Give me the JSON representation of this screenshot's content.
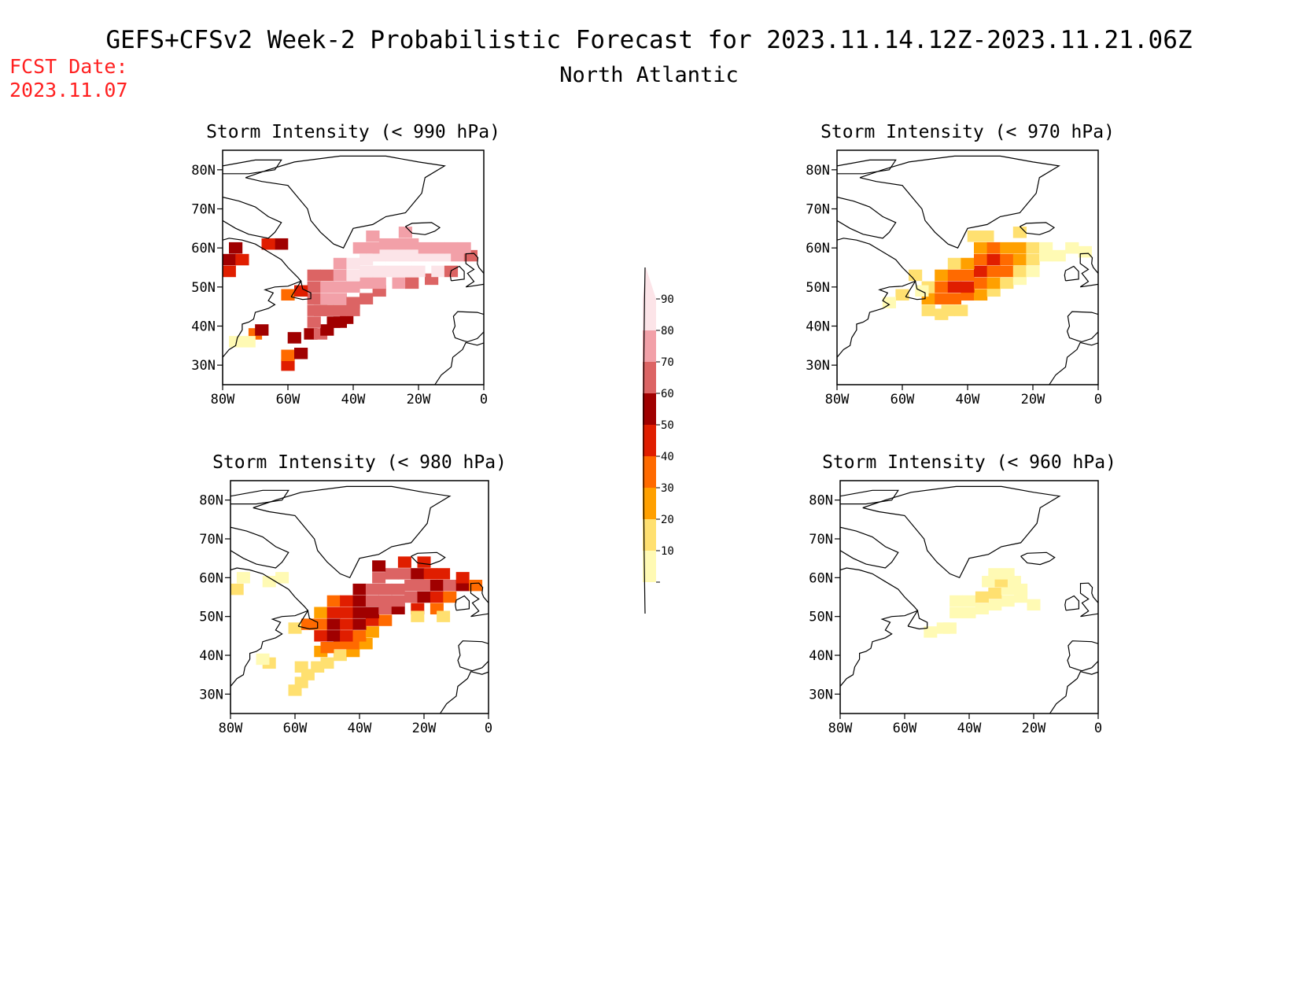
{
  "header": {
    "title": "GEFS+CFSv2 Week-2 Probabilistic Forecast for 2023.11.14.12Z-2023.11.21.06Z",
    "subtitle": "North Atlantic",
    "fcst_label": "FCST Date:",
    "fcst_date": "2023.11.07",
    "fcst_color": "#ff2020"
  },
  "axes": {
    "lat_labels": [
      "80N",
      "70N",
      "60N",
      "50N",
      "40N",
      "30N"
    ],
    "lon_labels": [
      "80W",
      "60W",
      "40W",
      "20W",
      "0"
    ]
  },
  "panels": [
    {
      "title": "Storm Intensity (< 990 hPa)"
    },
    {
      "title": "Storm Intensity (< 970 hPa)"
    },
    {
      "title": "Storm Intensity (< 980 hPa)"
    },
    {
      "title": "Storm Intensity (< 960 hPa)"
    }
  ],
  "colorbar": {
    "labels": [
      "90",
      "80",
      "70",
      "60",
      "50",
      "40",
      "30",
      "20",
      "10"
    ],
    "colors": [
      "#fce4e8",
      "#f2a0a8",
      "#dc6464",
      "#a00000",
      "#e01e00",
      "#ff6a00",
      "#ffa000",
      "#ffe070",
      "#fffab4"
    ]
  },
  "chart_data": [
    {
      "type": "heatmap",
      "title": "Storm Intensity (< 990 hPa)",
      "xlim": [
        -80,
        0
      ],
      "ylim": [
        25,
        85
      ],
      "cells": [
        [
          -60,
          30,
          50
        ],
        [
          -60,
          32.5,
          40
        ],
        [
          -56,
          33,
          60
        ],
        [
          -58,
          37,
          60
        ],
        [
          -53,
          38,
          60
        ],
        [
          -50,
          38,
          70
        ],
        [
          -48,
          39,
          60
        ],
        [
          -46,
          41,
          60
        ],
        [
          -44,
          41,
          60
        ],
        [
          -42,
          42,
          60
        ],
        [
          -52,
          41,
          70
        ],
        [
          -52,
          44,
          70
        ],
        [
          -50,
          44,
          70
        ],
        [
          -48,
          44,
          70
        ],
        [
          -44,
          44,
          70
        ],
        [
          -40,
          44,
          70
        ],
        [
          -52,
          47,
          70
        ],
        [
          -50,
          47,
          70
        ],
        [
          -48,
          47,
          80
        ],
        [
          -44,
          47,
          80
        ],
        [
          -40,
          46,
          70
        ],
        [
          -36,
          47,
          70
        ],
        [
          -32,
          49,
          70
        ],
        [
          -52,
          50,
          70
        ],
        [
          -48,
          50,
          80
        ],
        [
          -44,
          50,
          80
        ],
        [
          -40,
          50,
          80
        ],
        [
          -36,
          51,
          80
        ],
        [
          -32,
          51,
          80
        ],
        [
          -26,
          51,
          80
        ],
        [
          -22,
          51,
          70
        ],
        [
          -16,
          52,
          70
        ],
        [
          -52,
          53,
          70
        ],
        [
          -48,
          53,
          70
        ],
        [
          -44,
          53,
          80
        ],
        [
          -40,
          53,
          90
        ],
        [
          -36,
          54,
          90
        ],
        [
          -32,
          54,
          90
        ],
        [
          -28,
          54,
          90
        ],
        [
          -24,
          54,
          90
        ],
        [
          -20,
          54,
          90
        ],
        [
          -14,
          54,
          90
        ],
        [
          -10,
          54,
          70
        ],
        [
          -44,
          56,
          80
        ],
        [
          -40,
          56,
          90
        ],
        [
          -36,
          57,
          90
        ],
        [
          -32,
          58,
          90
        ],
        [
          -28,
          58,
          90
        ],
        [
          -24,
          58,
          90
        ],
        [
          -20,
          58,
          90
        ],
        [
          -16,
          58,
          90
        ],
        [
          -12,
          58,
          90
        ],
        [
          -8,
          58,
          80
        ],
        [
          -4,
          58,
          70
        ],
        [
          -38,
          60,
          80
        ],
        [
          -34,
          60,
          80
        ],
        [
          -30,
          61,
          80
        ],
        [
          -26,
          61,
          80
        ],
        [
          -22,
          61,
          80
        ],
        [
          -18,
          60,
          80
        ],
        [
          -14,
          60,
          80
        ],
        [
          -10,
          60,
          80
        ],
        [
          -6,
          60,
          80
        ],
        [
          -34,
          63,
          80
        ],
        [
          -24,
          64,
          80
        ],
        [
          -78,
          57,
          60
        ],
        [
          -76,
          60,
          60
        ],
        [
          -78,
          54,
          50
        ],
        [
          -74,
          57,
          50
        ],
        [
          -62,
          61,
          60
        ],
        [
          -66,
          61,
          50
        ],
        [
          -60,
          48,
          40
        ],
        [
          -56,
          49,
          50
        ],
        [
          -70,
          38,
          40
        ],
        [
          -68,
          39,
          60
        ],
        [
          -76,
          36,
          10
        ],
        [
          -72,
          36,
          10
        ]
      ]
    },
    {
      "type": "heatmap",
      "title": "Storm Intensity (< 970 hPa)",
      "xlim": [
        -80,
        0
      ],
      "ylim": [
        25,
        85
      ],
      "cells": [
        [
          -52,
          44,
          20
        ],
        [
          -48,
          43,
          20
        ],
        [
          -46,
          44,
          20
        ],
        [
          -42,
          44,
          20
        ],
        [
          -52,
          47,
          30
        ],
        [
          -48,
          47,
          40
        ],
        [
          -44,
          47,
          40
        ],
        [
          -40,
          48,
          40
        ],
        [
          -36,
          48,
          30
        ],
        [
          -32,
          49,
          20
        ],
        [
          -52,
          50,
          20
        ],
        [
          -48,
          50,
          40
        ],
        [
          -44,
          50,
          50
        ],
        [
          -40,
          50,
          50
        ],
        [
          -36,
          51,
          40
        ],
        [
          -32,
          51,
          30
        ],
        [
          -28,
          51,
          20
        ],
        [
          -24,
          52,
          10
        ],
        [
          -48,
          53,
          30
        ],
        [
          -44,
          53,
          40
        ],
        [
          -40,
          53,
          40
        ],
        [
          -36,
          54,
          50
        ],
        [
          -32,
          54,
          40
        ],
        [
          -28,
          54,
          40
        ],
        [
          -24,
          54,
          20
        ],
        [
          -20,
          54,
          10
        ],
        [
          -44,
          56,
          20
        ],
        [
          -40,
          56,
          30
        ],
        [
          -36,
          57,
          40
        ],
        [
          -32,
          57,
          50
        ],
        [
          -28,
          57,
          40
        ],
        [
          -24,
          57,
          30
        ],
        [
          -20,
          57,
          20
        ],
        [
          -16,
          58,
          10
        ],
        [
          -12,
          58,
          10
        ],
        [
          -8,
          60,
          10
        ],
        [
          -36,
          60,
          30
        ],
        [
          -32,
          60,
          40
        ],
        [
          -28,
          60,
          30
        ],
        [
          -24,
          60,
          30
        ],
        [
          -20,
          60,
          20
        ],
        [
          -16,
          60,
          10
        ],
        [
          -38,
          63,
          20
        ],
        [
          -34,
          63,
          20
        ],
        [
          -24,
          64,
          20
        ],
        [
          -56,
          53,
          20
        ],
        [
          -54,
          49,
          10
        ],
        [
          -60,
          48,
          20
        ],
        [
          -64,
          46,
          10
        ],
        [
          -4,
          59,
          10
        ]
      ]
    },
    {
      "type": "heatmap",
      "title": "Storm Intensity (< 980 hPa)",
      "xlim": [
        -80,
        0
      ],
      "ylim": [
        25,
        85
      ],
      "cells": [
        [
          -60,
          31,
          20
        ],
        [
          -58,
          33,
          20
        ],
        [
          -56,
          35,
          20
        ],
        [
          -58,
          37,
          20
        ],
        [
          -53,
          37,
          20
        ],
        [
          -50,
          38,
          20
        ],
        [
          -46,
          40,
          20
        ],
        [
          -42,
          41,
          30
        ],
        [
          -52,
          41,
          30
        ],
        [
          -50,
          42,
          40
        ],
        [
          -46,
          43,
          40
        ],
        [
          -42,
          43,
          40
        ],
        [
          -38,
          43,
          30
        ],
        [
          -52,
          45,
          50
        ],
        [
          -48,
          45,
          60
        ],
        [
          -44,
          45,
          50
        ],
        [
          -40,
          45,
          40
        ],
        [
          -36,
          46,
          30
        ],
        [
          -52,
          48,
          40
        ],
        [
          -48,
          48,
          60
        ],
        [
          -44,
          48,
          50
        ],
        [
          -40,
          48,
          60
        ],
        [
          -36,
          49,
          50
        ],
        [
          -32,
          49,
          40
        ],
        [
          -52,
          51,
          30
        ],
        [
          -48,
          51,
          50
        ],
        [
          -44,
          51,
          50
        ],
        [
          -40,
          51,
          60
        ],
        [
          -36,
          51,
          60
        ],
        [
          -32,
          52,
          70
        ],
        [
          -28,
          52,
          60
        ],
        [
          -22,
          52,
          50
        ],
        [
          -16,
          52,
          40
        ],
        [
          -48,
          54,
          40
        ],
        [
          -44,
          54,
          50
        ],
        [
          -40,
          54,
          60
        ],
        [
          -36,
          54,
          70
        ],
        [
          -32,
          54,
          70
        ],
        [
          -28,
          54,
          70
        ],
        [
          -24,
          55,
          70
        ],
        [
          -20,
          55,
          60
        ],
        [
          -16,
          55,
          50
        ],
        [
          -12,
          55,
          40
        ],
        [
          -40,
          57,
          60
        ],
        [
          -36,
          57,
          70
        ],
        [
          -32,
          57,
          70
        ],
        [
          -28,
          57,
          70
        ],
        [
          -24,
          58,
          70
        ],
        [
          -20,
          58,
          70
        ],
        [
          -16,
          58,
          60
        ],
        [
          -12,
          58,
          70
        ],
        [
          -8,
          58,
          60
        ],
        [
          -34,
          60,
          70
        ],
        [
          -30,
          61,
          70
        ],
        [
          -26,
          61,
          70
        ],
        [
          -22,
          61,
          60
        ],
        [
          -18,
          61,
          50
        ],
        [
          -14,
          61,
          50
        ],
        [
          -8,
          60,
          50
        ],
        [
          -4,
          58,
          40
        ],
        [
          -34,
          63,
          60
        ],
        [
          -26,
          64,
          50
        ],
        [
          -20,
          64,
          50
        ],
        [
          -78,
          57,
          20
        ],
        [
          -76,
          60,
          10
        ],
        [
          -68,
          59,
          10
        ],
        [
          -64,
          60,
          10
        ],
        [
          -60,
          47,
          20
        ],
        [
          -56,
          48,
          40
        ],
        [
          -68,
          38,
          20
        ],
        [
          -70,
          39,
          10
        ],
        [
          -14,
          50,
          20
        ],
        [
          -22,
          50,
          20
        ]
      ]
    },
    {
      "type": "heatmap",
      "title": "Storm Intensity (< 960 hPa)",
      "xlim": [
        -80,
        0
      ],
      "ylim": [
        25,
        85
      ],
      "cells": [
        [
          -44,
          51,
          10
        ],
        [
          -40,
          51,
          10
        ],
        [
          -36,
          52,
          10
        ],
        [
          -32,
          53,
          10
        ],
        [
          -28,
          54,
          10
        ],
        [
          -24,
          55,
          10
        ],
        [
          -44,
          54,
          10
        ],
        [
          -40,
          54,
          10
        ],
        [
          -36,
          55,
          20
        ],
        [
          -32,
          56,
          20
        ],
        [
          -28,
          57,
          10
        ],
        [
          -24,
          57,
          10
        ],
        [
          -34,
          59,
          10
        ],
        [
          -30,
          59,
          20
        ],
        [
          -26,
          59,
          10
        ],
        [
          -32,
          61,
          10
        ],
        [
          -28,
          61,
          10
        ],
        [
          -48,
          47,
          10
        ],
        [
          -46,
          47,
          10
        ],
        [
          -52,
          46,
          10
        ],
        [
          -20,
          53,
          10
        ]
      ]
    }
  ]
}
